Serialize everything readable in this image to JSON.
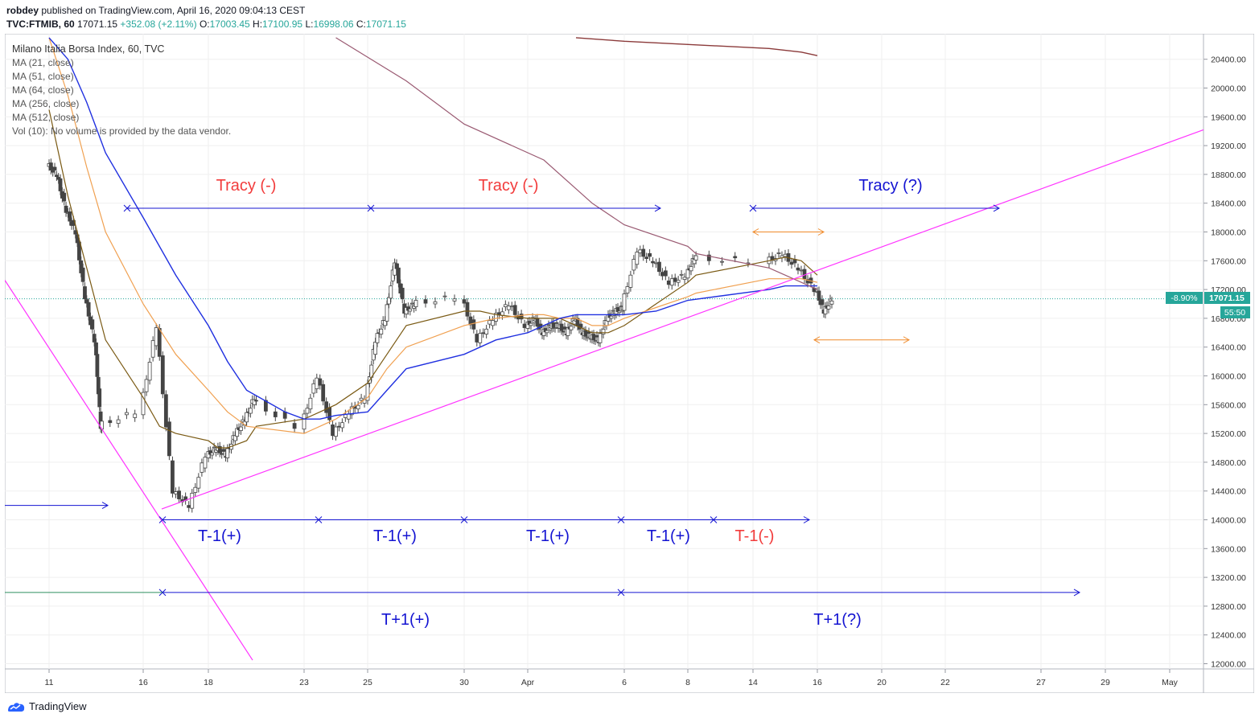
{
  "header": {
    "author": "robdey",
    "published": "published on TradingView.com, April 16, 2020 09:04:13 CEST",
    "symbol": "TVC:FTMIB, 60",
    "last": "17071.15",
    "change": "+352.08 (+2.11%)",
    "o_label": "O:",
    "o": "17003.45",
    "h_label": "H:",
    "h": "17100.95",
    "l_label": "L:",
    "l": "16998.06",
    "c_label": "C:",
    "c": "17071.15"
  },
  "legend": {
    "title": "Milano Italia Borsa Index, 60, TVC",
    "items": [
      "MA (21, close)",
      "MA (51, close)",
      "MA (64, close)",
      "MA (256, close)",
      "MA (512, close)",
      "Vol (10): No volume is provided by the data vendor."
    ]
  },
  "price_badge": {
    "pct": "-8.90%",
    "price": "17071.15",
    "countdown": "55:50"
  },
  "footer": {
    "brand": "TradingView"
  },
  "colors": {
    "up": "#26a69a",
    "down": "#ef5350",
    "candle": "#333333",
    "ma21": "#7a5a14",
    "ma51": "#f0a050",
    "ma64": "#2030e0",
    "ma256": "#9a5a72",
    "ma512": "#8b3a3a",
    "trend": "#ff33ff",
    "blue_ann": "#1414d2",
    "red_ann": "#f23c3c",
    "orange_ann": "#ef8a2a"
  },
  "chart_data": {
    "type": "line",
    "title": "Milano Italia Borsa Index, 60, TVC",
    "yaxis_ticks": [
      12000,
      12400,
      12800,
      13200,
      13600,
      14000,
      14400,
      14800,
      15200,
      15600,
      16000,
      16400,
      16800,
      17200,
      17600,
      18000,
      18400,
      18800,
      19200,
      19600,
      20000,
      20400
    ],
    "ylim": [
      11950,
      20700
    ],
    "xaxis_ticks": [
      "11",
      "16",
      "18",
      "23",
      "25",
      "30",
      "Apr",
      "6",
      "8",
      "14",
      "16",
      "20",
      "22",
      "27",
      "29",
      "May"
    ],
    "last_price": 17071.15,
    "price_series": {
      "name": "FTMIB close (approx.)",
      "x_day": [
        11,
        11.5,
        12,
        12.5,
        13,
        13.5,
        13.8,
        16,
        16.5,
        17,
        17.5,
        18,
        18.5,
        19,
        19.5,
        20,
        20.5,
        23,
        23.5,
        24,
        24.5,
        25,
        25.5,
        26,
        26.5,
        27,
        27.5,
        30,
        30.5,
        31,
        31.5,
        32,
        32.5,
        33,
        33.5,
        34,
        34.5,
        35,
        35.5,
        36,
        36.5,
        37,
        37.5,
        38,
        38.5,
        39,
        39.5,
        40,
        40.5,
        44.5,
        45,
        45.5,
        46,
        46.5
      ],
      "close": [
        18800,
        18300,
        18000,
        17100,
        16500,
        15300,
        15500,
        16700,
        14400,
        14200,
        14900,
        15000,
        14900,
        15200,
        15400,
        15700,
        15300,
        16000,
        15200,
        15500,
        15700,
        16500,
        16800,
        17600,
        16900,
        17000,
        17100,
        16500,
        16800,
        17000,
        16700,
        16800,
        16600,
        16700,
        16700,
        16600,
        16800,
        16600,
        16550,
        16500,
        16800,
        16900,
        16950,
        17750,
        17600,
        17300,
        17400,
        17650,
        17600,
        17700,
        17500,
        17200,
        16900,
        17071.15
      ]
    },
    "series": [
      {
        "name": "MA (21, close)",
        "x_day": [
          11,
          12,
          13,
          14,
          16,
          16.5,
          17,
          18,
          18.5,
          19,
          20,
          20.5,
          23,
          23.5,
          24,
          25,
          25.5,
          26,
          27,
          30,
          30.5,
          31,
          32,
          33,
          34,
          35,
          36,
          37,
          38,
          39,
          40,
          40.5,
          44.5,
          45,
          45.5,
          46
        ],
        "y": [
          19700,
          18500,
          17500,
          16500,
          15700,
          15300,
          15200,
          15100,
          15000,
          15000,
          15100,
          15300,
          15400,
          15500,
          15600,
          15900,
          16100,
          16300,
          16700,
          16900,
          16900,
          16850,
          16800,
          16800,
          16800,
          16700,
          16600,
          16600,
          16700,
          17000,
          17300,
          17400,
          17600,
          17650,
          17600,
          17400
        ]
      },
      {
        "name": "MA (51, close)",
        "x_day": [
          11,
          12,
          13,
          14,
          16,
          17,
          18,
          19,
          20,
          23,
          23.5,
          24,
          25,
          26,
          27,
          30,
          31,
          32,
          33,
          34,
          35,
          36,
          37,
          38,
          39,
          40,
          40.5,
          44.5,
          45,
          45.5,
          46
        ],
        "y": [
          20700,
          19900,
          18900,
          18000,
          17000,
          16300,
          15800,
          15500,
          15300,
          15200,
          15300,
          15400,
          15700,
          16100,
          16400,
          16700,
          16800,
          16850,
          16850,
          16800,
          16800,
          16700,
          16700,
          16800,
          16950,
          17100,
          17150,
          17350,
          17350,
          17350,
          17300
        ]
      },
      {
        "name": "MA (64, close)",
        "x_day": [
          11,
          12,
          13,
          14,
          16,
          17,
          18,
          19,
          20,
          22,
          23,
          23.5,
          24,
          25,
          26,
          27,
          30,
          31,
          32,
          33,
          34,
          35,
          36,
          37,
          38,
          39,
          40,
          44.5,
          45,
          46
        ],
        "y": [
          20700,
          20400,
          19800,
          19100,
          18200,
          17400,
          16700,
          16200,
          15800,
          15500,
          15400,
          15400,
          15450,
          15500,
          15800,
          16100,
          16300,
          16500,
          16600,
          16700,
          16800,
          16850,
          16850,
          16850,
          16850,
          16900,
          17050,
          17200,
          17250,
          17250
        ]
      },
      {
        "name": "MA (256, close)",
        "x_day": [
          24,
          27,
          30,
          33,
          36,
          38,
          40,
          40.5,
          44.5,
          45,
          46
        ],
        "y": [
          20700,
          20100,
          19500,
          19000,
          18400,
          18100,
          17800,
          17700,
          17500,
          17400,
          17200
        ]
      },
      {
        "name": "MA (512, close)",
        "x_day": [
          35,
          38,
          40.5,
          44.5,
          45.5,
          46
        ],
        "y": [
          20700,
          20650,
          20600,
          20550,
          20500,
          20450
        ]
      }
    ],
    "annotations": {
      "labels": [
        "Tracy (-)",
        "Tracy (-)",
        "Tracy (?)",
        "T-1(+)",
        "T-1(+)",
        "T-1(+)",
        "T-1(+)",
        "T-1(-)",
        "T+1(+)",
        "T+1(?)"
      ]
    }
  }
}
